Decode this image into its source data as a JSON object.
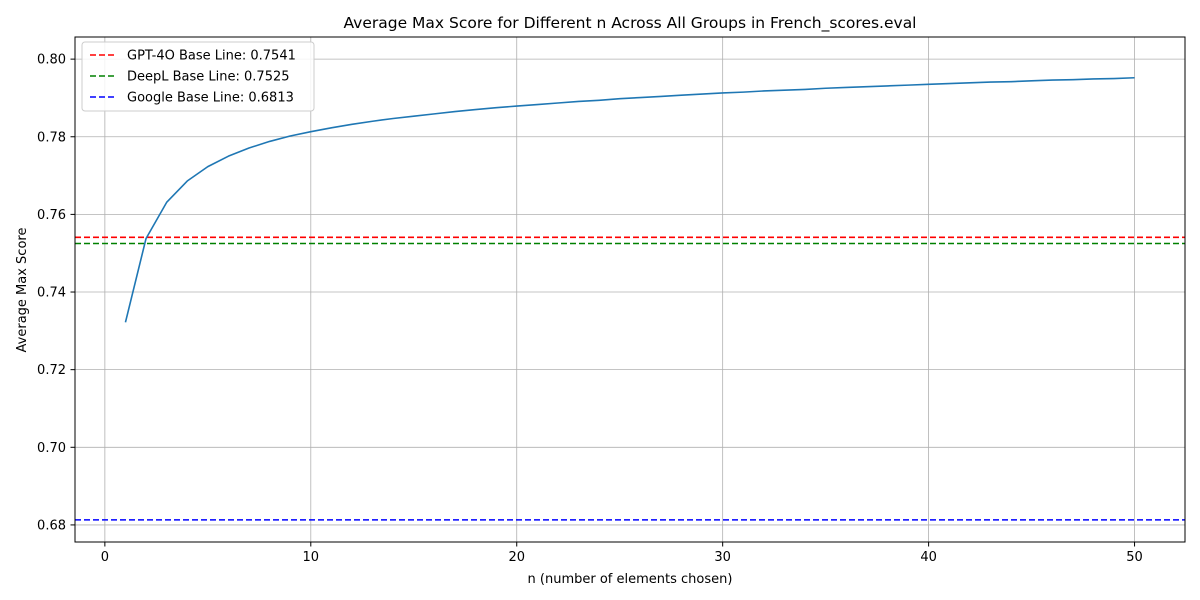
{
  "chart_data": {
    "type": "line",
    "title": "Average Max Score for Different n Across All Groups in French_scores.eval",
    "xlabel": "n (number of elements chosen)",
    "ylabel": "Average Max Score",
    "xlim": [
      -1.45,
      52.45
    ],
    "ylim": [
      0.6756,
      0.8057
    ],
    "x_ticks": [
      0,
      10,
      20,
      30,
      40,
      50
    ],
    "y_ticks": [
      0.68,
      0.7,
      0.72,
      0.74,
      0.76,
      0.78,
      0.8
    ],
    "x_tick_labels": [
      "0",
      "10",
      "20",
      "30",
      "40",
      "50"
    ],
    "y_tick_labels": [
      "0.68",
      "0.70",
      "0.72",
      "0.74",
      "0.76",
      "0.78",
      "0.80"
    ],
    "grid": true,
    "legend_position": "top-left",
    "series": [
      {
        "color": "#1f77b4",
        "style": "solid",
        "x": [
          1,
          2,
          3,
          4,
          5,
          6,
          7,
          8,
          9,
          10,
          11,
          12,
          13,
          14,
          15,
          16,
          17,
          18,
          19,
          20,
          21,
          22,
          23,
          24,
          25,
          26,
          27,
          28,
          29,
          30,
          31,
          32,
          33,
          34,
          35,
          36,
          37,
          38,
          39,
          40,
          41,
          42,
          43,
          44,
          45,
          46,
          47,
          48,
          49,
          50
        ],
        "values": [
          0.7322,
          0.7538,
          0.7631,
          0.7686,
          0.7723,
          0.775,
          0.7771,
          0.7788,
          0.7802,
          0.7813,
          0.7823,
          0.7832,
          0.784,
          0.7847,
          0.7853,
          0.7859,
          0.7865,
          0.787,
          0.7875,
          0.7879,
          0.7883,
          0.7887,
          0.7891,
          0.7894,
          0.7898,
          0.7901,
          0.7904,
          0.7907,
          0.791,
          0.7913,
          0.7915,
          0.7918,
          0.792,
          0.7922,
          0.7925,
          0.7927,
          0.7929,
          0.7931,
          0.7933,
          0.7935,
          0.7937,
          0.7939,
          0.7941,
          0.7942,
          0.7944,
          0.7946,
          0.7947,
          0.7949,
          0.795,
          0.7952
        ]
      }
    ],
    "baselines": [
      {
        "name": "GPT-4O Base Line: 0.7541",
        "value": 0.7541,
        "color": "#ff0000",
        "style": "dashed"
      },
      {
        "name": "DeepL Base Line: 0.7525",
        "value": 0.7525,
        "color": "#008000",
        "style": "dashed"
      },
      {
        "name": "Google Base Line: 0.6813",
        "value": 0.6813,
        "color": "#0000ff",
        "style": "dashed"
      }
    ]
  }
}
